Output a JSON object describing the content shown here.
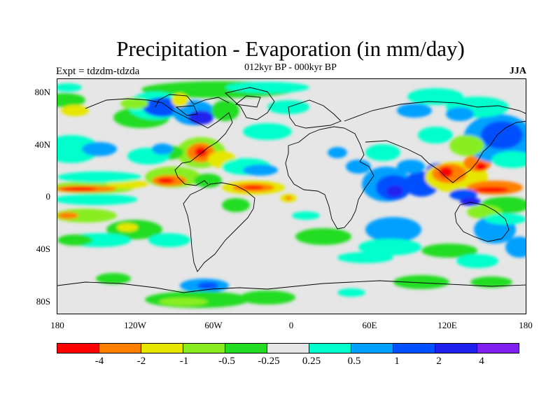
{
  "title": "Precipitation - Evaporation (in mm/day)",
  "subtitle": "012kyr BP - 000kyr BP",
  "expt_label": "Expt = tdzdm-tdzda",
  "season": "JJA",
  "lat_labels": [
    "80N",
    "40N",
    "0",
    "40S",
    "80S"
  ],
  "lon_labels": [
    "180",
    "120W",
    "60W",
    "0",
    "60E",
    "120E",
    "180"
  ],
  "colorbar": {
    "colors": [
      "#ff0000",
      "#ff8000",
      "#e6e600",
      "#88ee22",
      "#22dd22",
      "#e6e6e6",
      "#00ffcc",
      "#00a0ff",
      "#0050ff",
      "#2020ee",
      "#8020ee"
    ],
    "labels": [
      "-4",
      "-2",
      "-1",
      "-0.5",
      "-0.25",
      "0.25",
      "0.5",
      "1",
      "2",
      "4"
    ]
  }
}
